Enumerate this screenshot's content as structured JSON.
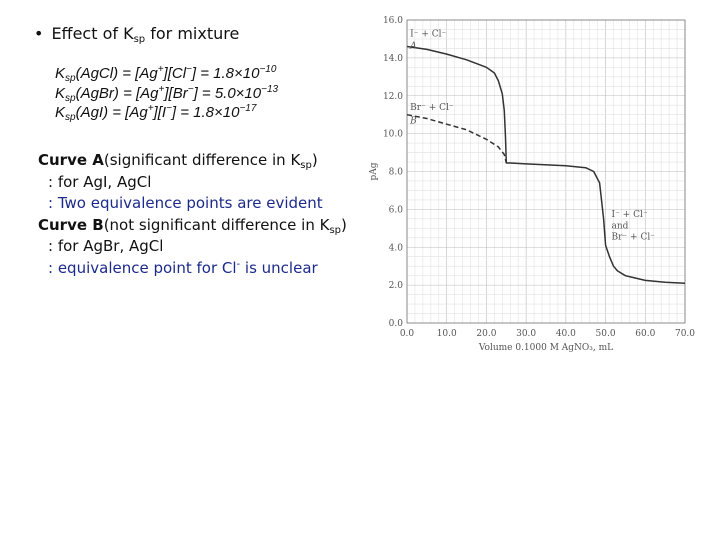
{
  "heading": {
    "bullet": "•",
    "prefix": "Effect of K",
    "sub": "sp",
    "suffix": " for mixture"
  },
  "equations": [
    {
      "k": "K",
      "ksub": "sp",
      "lhs": "(AgCl) = [Ag",
      "ion1": "+",
      "mid": "][Cl",
      "ion2": "−",
      "rhs": "] = 1.8×10",
      "exp": "−10"
    },
    {
      "k": "K",
      "ksub": "sp",
      "lhs": "(AgBr) = [Ag",
      "ion1": "+",
      "mid": "][Br",
      "ion2": "−",
      "rhs": "] = 5.0×10",
      "exp": "−13"
    },
    {
      "k": "K",
      "ksub": "sp",
      "lhs": "(AgI) = [Ag",
      "ion1": "+",
      "mid": "][I",
      "ion2": "−",
      "rhs": "] = 1.8×10",
      "exp": "−17"
    }
  ],
  "notes": {
    "curveA_title": "Curve A",
    "curveA_desc": "(significant difference in K",
    "curveA_sub": "sp",
    "curveA_end": ")",
    "curveA_line1": ": for AgI, AgCl",
    "curveA_line2": ": Two equivalence points are evident",
    "curveB_title": "Curve B",
    "curveB_desc": "(not significant difference in K",
    "curveB_sub": "sp",
    "curveB_end": ")",
    "curveB_line1": ": for AgBr, AgCl",
    "curveB_line2_a": ": equivalence point for Cl",
    "curveB_line2_sup": "-",
    "curveB_line2_b": " is unclear"
  },
  "chart_data": {
    "type": "line",
    "xlabel": "Volume 0.1000 M AgNO₃, mL",
    "ylabel": "pAg",
    "xlim": [
      0,
      70
    ],
    "ylim": [
      0,
      16
    ],
    "xticks": [
      "0.0",
      "10.0",
      "20.0",
      "30.0",
      "40.0",
      "50.0",
      "60.0",
      "70.0"
    ],
    "yticks": [
      "0.0",
      "2.0",
      "4.0",
      "6.0",
      "8.0",
      "10.0",
      "12.0",
      "14.0",
      "16.0"
    ],
    "grid": true,
    "series": [
      {
        "name": "A",
        "label": "I⁻ + Cl⁻",
        "style": "solid",
        "x": [
          0,
          5,
          10,
          15,
          20,
          22,
          23,
          24,
          24.5,
          24.8,
          25,
          26,
          30,
          40,
          45,
          47,
          48.5,
          49.5,
          50
        ],
        "y": [
          14.6,
          14.45,
          14.2,
          13.9,
          13.5,
          13.2,
          12.8,
          12.1,
          11.2,
          9.8,
          8.45,
          8.45,
          8.4,
          8.3,
          8.2,
          8.0,
          7.4,
          5.5,
          4.1
        ]
      },
      {
        "name": "B",
        "label": "Br⁻ + Cl⁻",
        "style": "dashed",
        "x": [
          0,
          5,
          10,
          15,
          20,
          23,
          24.5,
          25
        ],
        "y": [
          11.0,
          10.8,
          10.5,
          10.2,
          9.7,
          9.3,
          8.9,
          8.45
        ]
      },
      {
        "name": "tail",
        "label": "I⁻ + Cl⁻ and Br⁻ + Cl⁻",
        "style": "solid",
        "x": [
          50,
          51,
          52,
          53,
          55,
          58,
          60,
          65,
          70
        ],
        "y": [
          4.1,
          3.5,
          3.0,
          2.75,
          2.5,
          2.35,
          2.25,
          2.15,
          2.1
        ]
      }
    ],
    "annotations": {
      "a_line": "I⁻ + Cl⁻",
      "a_letter": "A",
      "b_line": "Br⁻ + Cl⁻",
      "b_letter": "B",
      "tail_1": "I⁻ + Cl⁻",
      "tail_2": "and",
      "tail_3": "Br⁻ + Cl⁻"
    }
  }
}
